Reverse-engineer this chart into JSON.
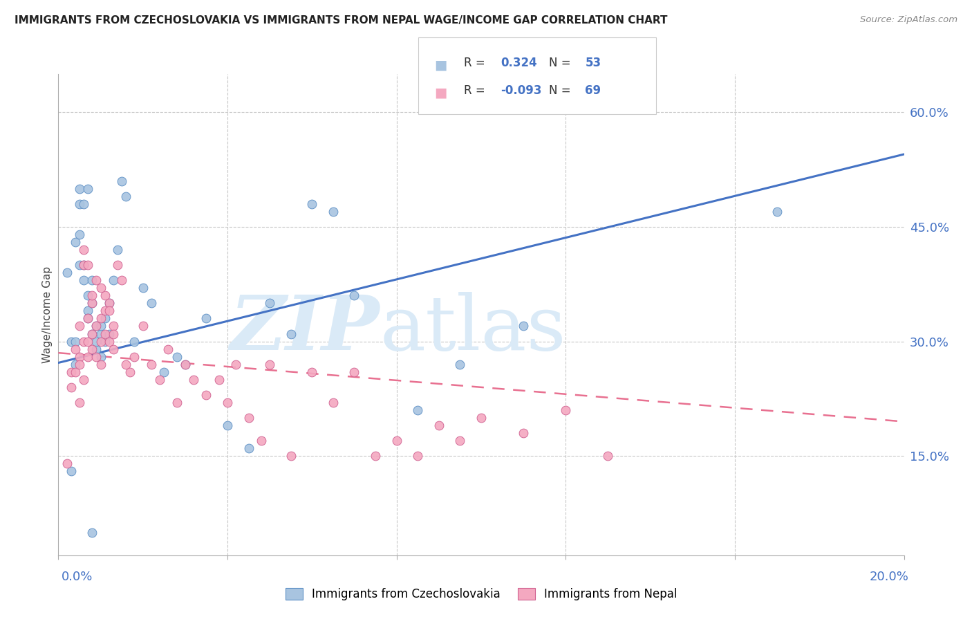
{
  "title": "IMMIGRANTS FROM CZECHOSLOVAKIA VS IMMIGRANTS FROM NEPAL WAGE/INCOME GAP CORRELATION CHART",
  "source": "Source: ZipAtlas.com",
  "ylabel": "Wage/Income Gap",
  "ytick_vals": [
    0.15,
    0.3,
    0.45,
    0.6
  ],
  "xlim": [
    0.0,
    0.2
  ],
  "ylim": [
    0.02,
    0.65
  ],
  "r_czecho": 0.324,
  "n_czecho": 53,
  "r_nepal": -0.093,
  "n_nepal": 69,
  "color_czecho_fill": "#a8c4e0",
  "color_czecho_edge": "#5b8ec4",
  "color_nepal_fill": "#f4a8c0",
  "color_nepal_edge": "#d06090",
  "color_czecho_line": "#4472c4",
  "color_nepal_line": "#e87090",
  "watermark_color": "#daeaf7",
  "czecho_line_x0": 0.0,
  "czecho_line_y0": 0.272,
  "czecho_line_x1": 0.2,
  "czecho_line_y1": 0.545,
  "nepal_line_x0": 0.0,
  "nepal_line_y0": 0.285,
  "nepal_line_x1": 0.2,
  "nepal_line_y1": 0.195,
  "czecho_x": [
    0.002,
    0.003,
    0.004,
    0.004,
    0.004,
    0.005,
    0.005,
    0.005,
    0.005,
    0.006,
    0.006,
    0.006,
    0.007,
    0.007,
    0.007,
    0.007,
    0.008,
    0.008,
    0.008,
    0.009,
    0.009,
    0.009,
    0.01,
    0.01,
    0.01,
    0.011,
    0.011,
    0.012,
    0.012,
    0.013,
    0.014,
    0.015,
    0.016,
    0.018,
    0.02,
    0.022,
    0.025,
    0.028,
    0.03,
    0.035,
    0.04,
    0.045,
    0.05,
    0.055,
    0.06,
    0.065,
    0.07,
    0.085,
    0.095,
    0.11,
    0.17,
    0.003,
    0.008
  ],
  "czecho_y": [
    0.39,
    0.3,
    0.27,
    0.3,
    0.43,
    0.4,
    0.48,
    0.5,
    0.44,
    0.38,
    0.4,
    0.48,
    0.34,
    0.36,
    0.33,
    0.5,
    0.31,
    0.35,
    0.38,
    0.29,
    0.3,
    0.32,
    0.28,
    0.31,
    0.32,
    0.3,
    0.33,
    0.35,
    0.31,
    0.38,
    0.42,
    0.51,
    0.49,
    0.3,
    0.37,
    0.35,
    0.26,
    0.28,
    0.27,
    0.33,
    0.19,
    0.16,
    0.35,
    0.31,
    0.48,
    0.47,
    0.36,
    0.21,
    0.27,
    0.32,
    0.47,
    0.13,
    0.05
  ],
  "nepal_x": [
    0.002,
    0.003,
    0.003,
    0.004,
    0.004,
    0.005,
    0.005,
    0.005,
    0.006,
    0.006,
    0.006,
    0.007,
    0.007,
    0.007,
    0.008,
    0.008,
    0.008,
    0.009,
    0.009,
    0.01,
    0.01,
    0.01,
    0.011,
    0.011,
    0.012,
    0.012,
    0.013,
    0.013,
    0.014,
    0.015,
    0.016,
    0.017,
    0.018,
    0.02,
    0.022,
    0.024,
    0.026,
    0.028,
    0.03,
    0.032,
    0.035,
    0.038,
    0.04,
    0.042,
    0.045,
    0.048,
    0.05,
    0.055,
    0.06,
    0.065,
    0.07,
    0.075,
    0.08,
    0.085,
    0.09,
    0.095,
    0.1,
    0.11,
    0.12,
    0.13,
    0.005,
    0.006,
    0.007,
    0.008,
    0.009,
    0.01,
    0.011,
    0.012,
    0.013
  ],
  "nepal_y": [
    0.14,
    0.26,
    0.24,
    0.29,
    0.26,
    0.28,
    0.32,
    0.27,
    0.3,
    0.25,
    0.4,
    0.3,
    0.33,
    0.28,
    0.31,
    0.35,
    0.29,
    0.28,
    0.32,
    0.3,
    0.27,
    0.33,
    0.36,
    0.31,
    0.3,
    0.35,
    0.29,
    0.32,
    0.4,
    0.38,
    0.27,
    0.26,
    0.28,
    0.32,
    0.27,
    0.25,
    0.29,
    0.22,
    0.27,
    0.25,
    0.23,
    0.25,
    0.22,
    0.27,
    0.2,
    0.17,
    0.27,
    0.15,
    0.26,
    0.22,
    0.26,
    0.15,
    0.17,
    0.15,
    0.19,
    0.17,
    0.2,
    0.18,
    0.21,
    0.15,
    0.22,
    0.42,
    0.4,
    0.36,
    0.38,
    0.37,
    0.34,
    0.34,
    0.31
  ]
}
